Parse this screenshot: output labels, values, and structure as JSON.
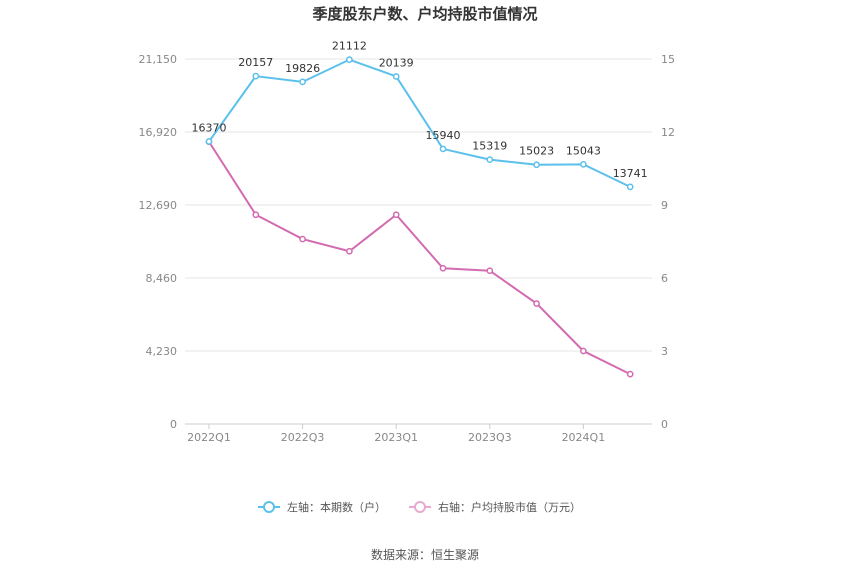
{
  "chart_data": {
    "type": "line",
    "title": "季度股东户数、户均持股市值情况",
    "categories": [
      "2022Q1",
      "2022Q2",
      "2022Q3",
      "2022Q4",
      "2023Q1",
      "2023Q2",
      "2023Q3",
      "2023Q4",
      "2024Q1",
      "2024Q2"
    ],
    "x_tick_labels": [
      "2022Q1",
      "2022Q3",
      "2023Q1",
      "2023Q3",
      "2024Q1"
    ],
    "left_axis": {
      "ticks": [
        "0",
        "4,230",
        "8,460",
        "12,690",
        "16,920",
        "21,150"
      ],
      "range": [
        0,
        21150
      ]
    },
    "right_axis": {
      "ticks": [
        "0",
        "3",
        "6",
        "9",
        "12",
        "15"
      ],
      "range": [
        0,
        15
      ]
    },
    "series": [
      {
        "name": "左轴：本期数（户）",
        "axis": "left",
        "color": "#5bc0eb",
        "values": [
          16370,
          20157,
          19826,
          21112,
          20139,
          15940,
          15319,
          15023,
          15043,
          13741
        ],
        "labels": [
          "16370",
          "20157",
          "19826",
          "21112",
          "20139",
          "15940",
          "15319",
          "15023",
          "15043",
          "13741"
        ]
      },
      {
        "name": "右轴：户均持股市值（万元）",
        "axis": "right",
        "color": "#d36bb0",
        "values": [
          11.6,
          8.6,
          7.6,
          7.1,
          8.6,
          6.4,
          6.3,
          4.95,
          3.0,
          2.05
        ]
      }
    ],
    "grid": true,
    "legend_position": "bottom"
  },
  "source": "数据来源：恒生聚源"
}
